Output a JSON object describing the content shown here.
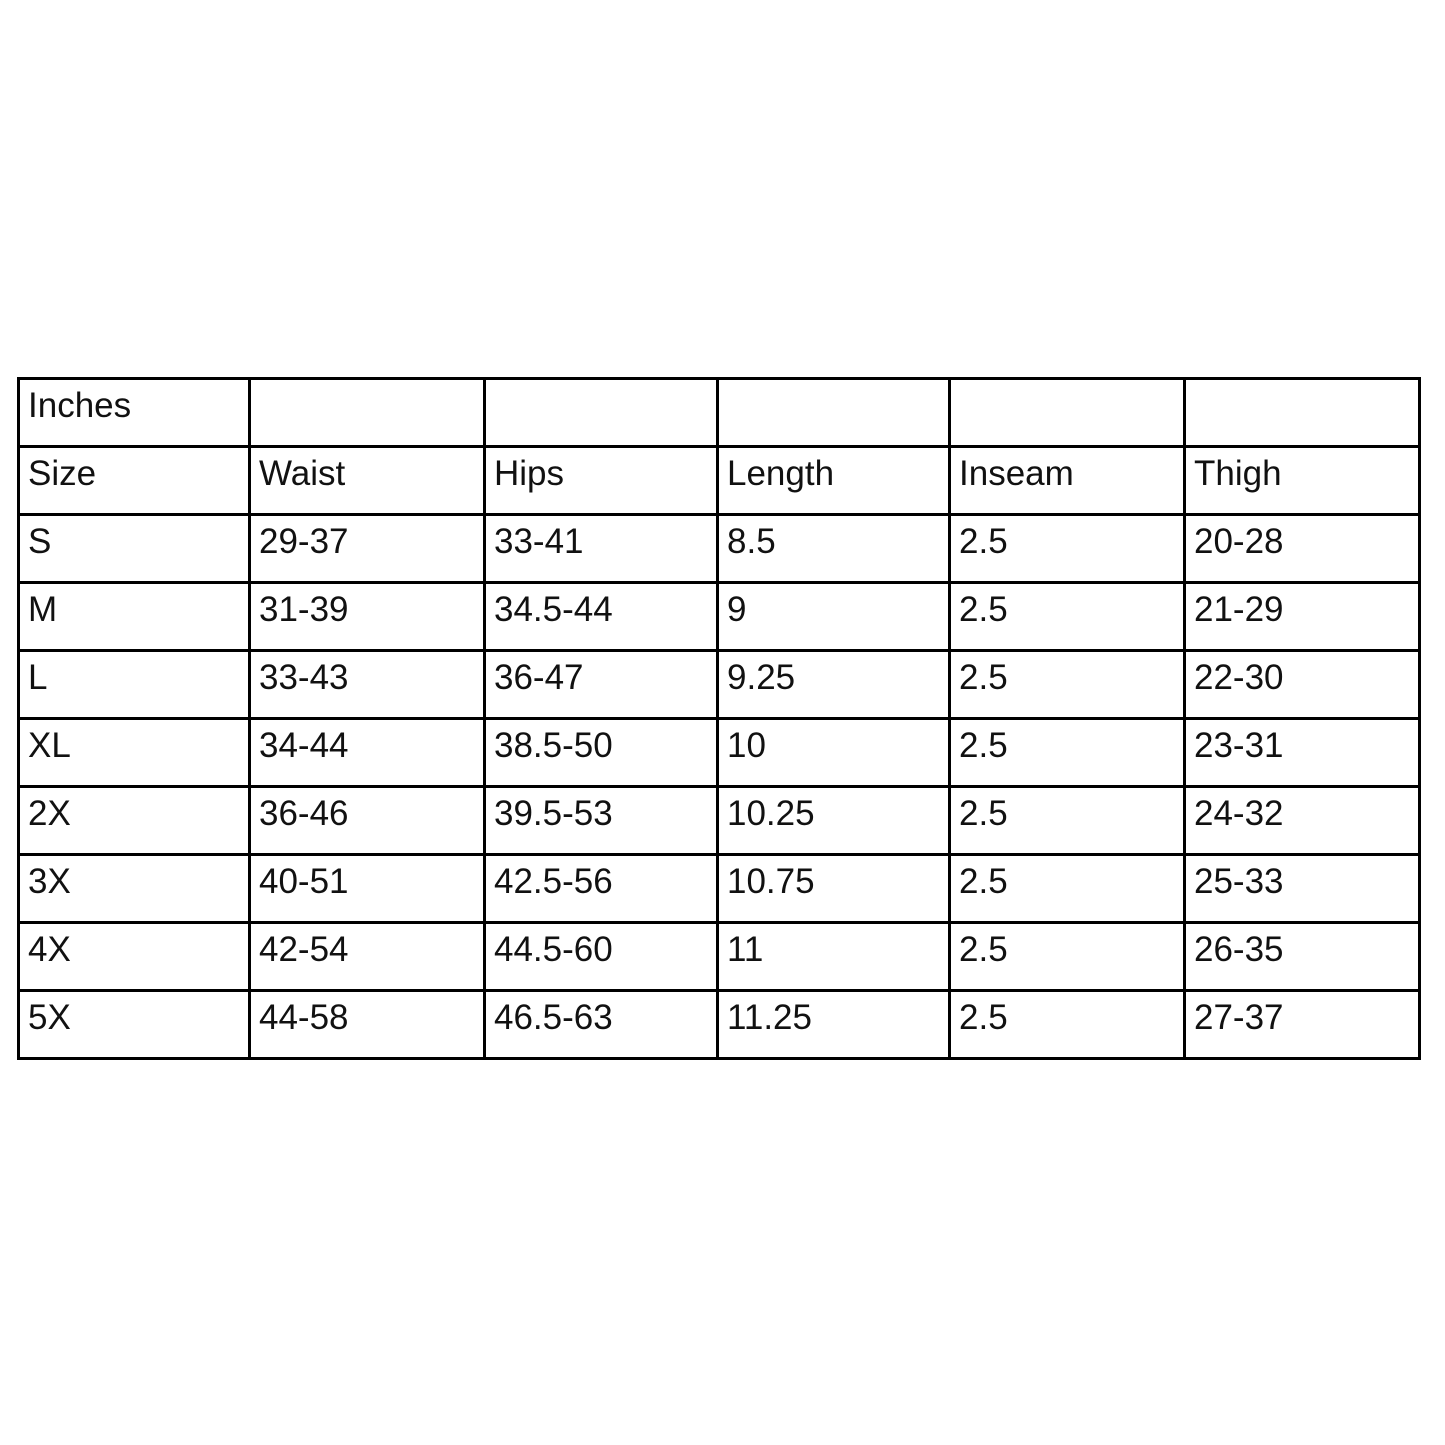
{
  "table": {
    "unit_label": "Inches",
    "headers": [
      "Size",
      "Waist",
      "Hips",
      "Length",
      "Inseam",
      "Thigh"
    ],
    "rows": [
      [
        "S",
        "29-37",
        "33-41",
        "8.5",
        "2.5",
        "20-28"
      ],
      [
        "M",
        "31-39",
        "34.5-44",
        "9",
        "2.5",
        "21-29"
      ],
      [
        "L",
        "33-43",
        "36-47",
        "9.25",
        "2.5",
        "22-30"
      ],
      [
        "XL",
        "34-44",
        "38.5-50",
        "10",
        "2.5",
        "23-31"
      ],
      [
        "2X",
        "36-46",
        "39.5-53",
        "10.25",
        "2.5",
        "24-32"
      ],
      [
        "3X",
        "40-51",
        "42.5-56",
        "10.75",
        "2.5",
        "25-33"
      ],
      [
        "4X",
        "42-54",
        "44.5-60",
        "11",
        "2.5",
        "26-35"
      ],
      [
        "5X",
        "44-58",
        "46.5-63",
        "11.25",
        "2.5",
        "27-37"
      ]
    ]
  }
}
